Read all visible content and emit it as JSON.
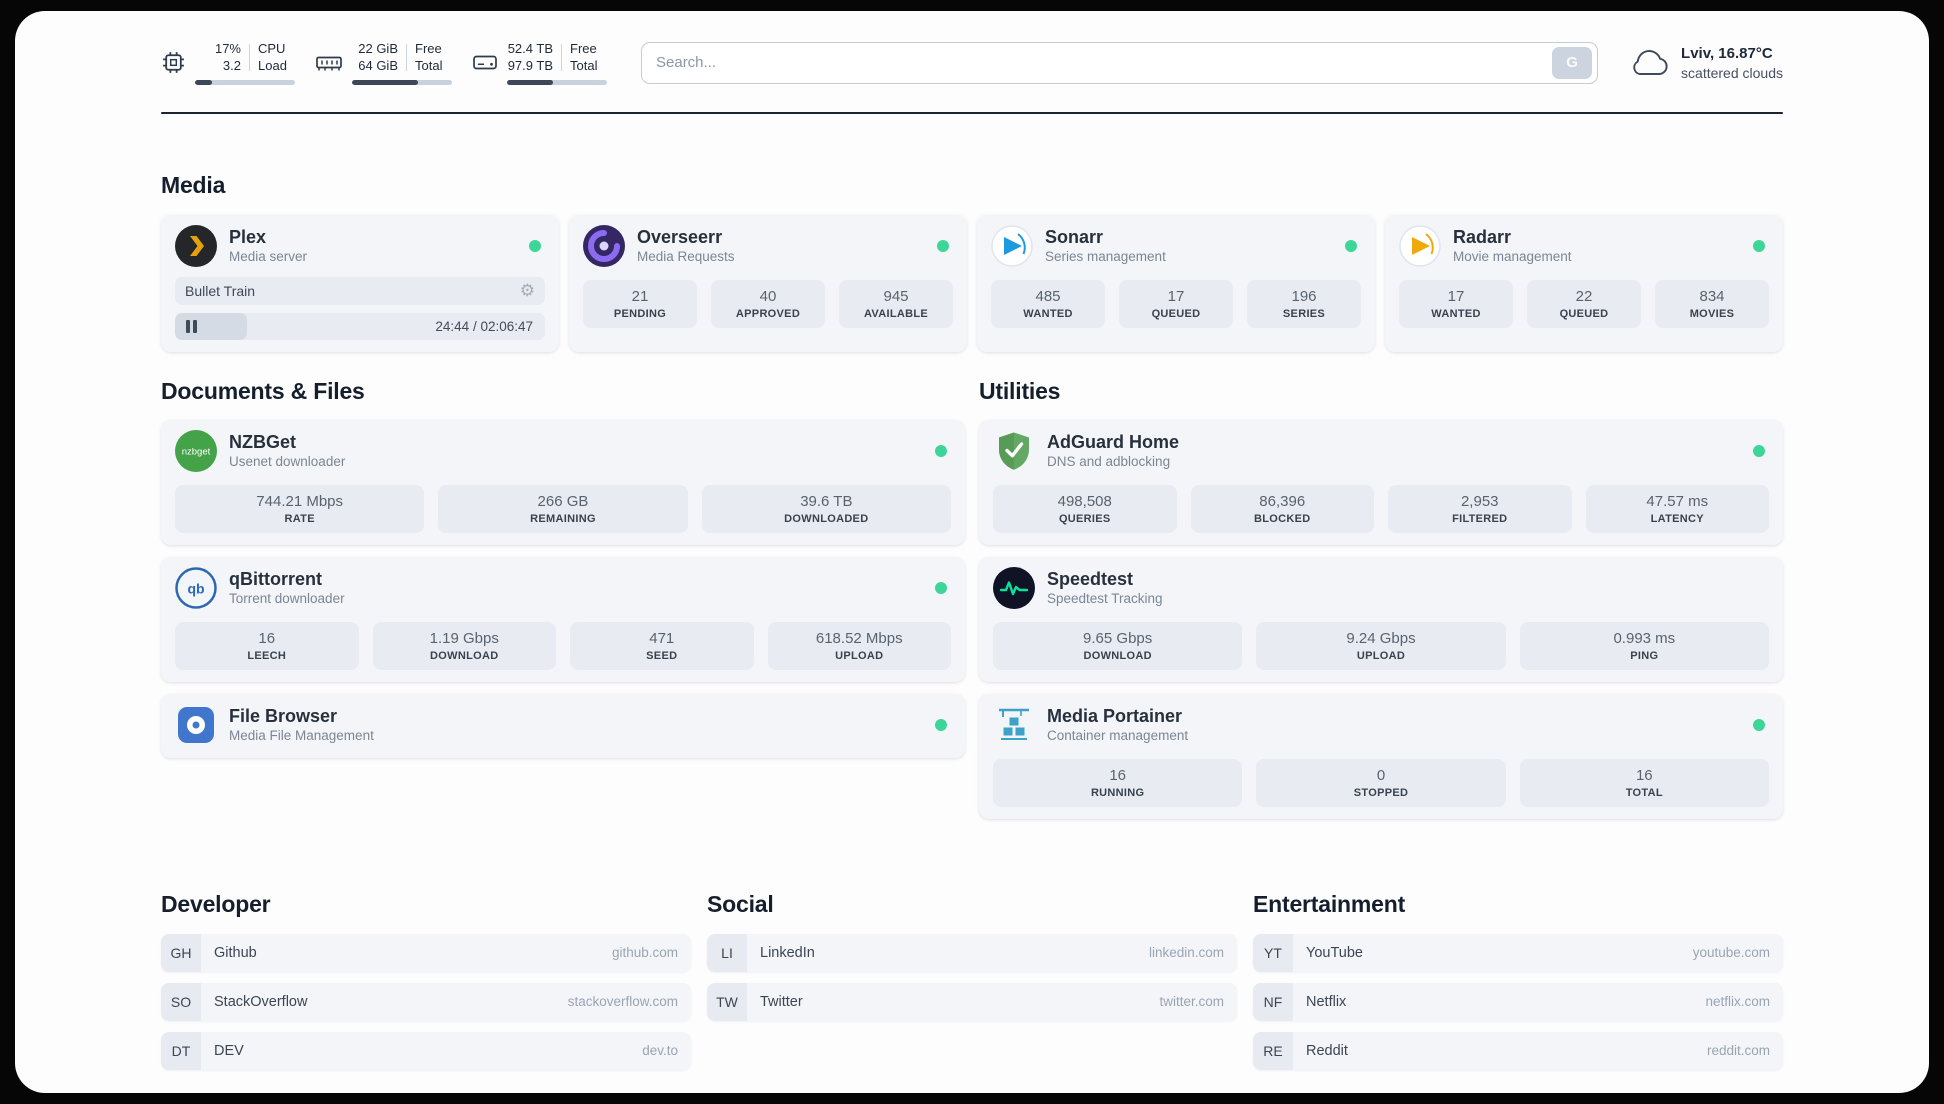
{
  "header": {
    "cpu": {
      "values": [
        "17%",
        "3.2"
      ],
      "labels": [
        "CPU",
        "Load"
      ],
      "used_percent": 17
    },
    "memory": {
      "values": [
        "22 GiB",
        "64 GiB"
      ],
      "labels": [
        "Free",
        "Total"
      ],
      "used_percent": 66
    },
    "disk": {
      "values": [
        "52.4 TB",
        "97.9 TB"
      ],
      "labels": [
        "Free",
        "Total"
      ],
      "used_percent": 46
    },
    "search": {
      "placeholder": "Search...",
      "button_label": "G"
    },
    "weather": {
      "location": "Lviv, 16.87°C",
      "condition": "scattered clouds"
    }
  },
  "icons": {
    "gear": "⚙"
  },
  "sections": {
    "media": {
      "title": "Media",
      "plex": {
        "name": "Plex",
        "description": "Media server",
        "status": "online",
        "now_playing": "Bullet Train",
        "time": "24:44 / 02:06:47",
        "progress_percent": 19.5
      },
      "overseerr": {
        "name": "Overseerr",
        "description": "Media Requests",
        "status": "online",
        "stats": [
          {
            "value": "21",
            "label": "PENDING"
          },
          {
            "value": "40",
            "label": "APPROVED"
          },
          {
            "value": "945",
            "label": "AVAILABLE"
          }
        ]
      },
      "sonarr": {
        "name": "Sonarr",
        "description": "Series management",
        "status": "online",
        "stats": [
          {
            "value": "485",
            "label": "WANTED"
          },
          {
            "value": "17",
            "label": "QUEUED"
          },
          {
            "value": "196",
            "label": "SERIES"
          }
        ]
      },
      "radarr": {
        "name": "Radarr",
        "description": "Movie management",
        "status": "online",
        "stats": [
          {
            "value": "17",
            "label": "WANTED"
          },
          {
            "value": "22",
            "label": "QUEUED"
          },
          {
            "value": "834",
            "label": "MOVIES"
          }
        ]
      }
    },
    "documents": {
      "title": "Documents & Files",
      "nzbget": {
        "name": "NZBGet",
        "description": "Usenet downloader",
        "status": "online",
        "icon_text": "nzbget",
        "stats": [
          {
            "value": "744.21 Mbps",
            "label": "RATE"
          },
          {
            "value": "266 GB",
            "label": "REMAINING"
          },
          {
            "value": "39.6 TB",
            "label": "DOWNLOADED"
          }
        ]
      },
      "qbittorrent": {
        "name": "qBittorrent",
        "description": "Torrent downloader",
        "status": "online",
        "icon_text": "qb",
        "stats": [
          {
            "value": "16",
            "label": "LEECH"
          },
          {
            "value": "1.19 Gbps",
            "label": "DOWNLOAD"
          },
          {
            "value": "471",
            "label": "SEED"
          },
          {
            "value": "618.52 Mbps",
            "label": "UPLOAD"
          }
        ]
      },
      "filebrowser": {
        "name": "File Browser",
        "description": "Media File Management",
        "status": "online"
      }
    },
    "utilities": {
      "title": "Utilities",
      "adguard": {
        "name": "AdGuard Home",
        "description": "DNS and adblocking",
        "status": "online",
        "stats": [
          {
            "value": "498,508",
            "label": "QUERIES"
          },
          {
            "value": "86,396",
            "label": "BLOCKED"
          },
          {
            "value": "2,953",
            "label": "FILTERED"
          },
          {
            "value": "47.57 ms",
            "label": "LATENCY"
          }
        ]
      },
      "speedtest": {
        "name": "Speedtest",
        "description": "Speedtest Tracking",
        "stats": [
          {
            "value": "9.65 Gbps",
            "label": "DOWNLOAD"
          },
          {
            "value": "9.24 Gbps",
            "label": "UPLOAD"
          },
          {
            "value": "0.993 ms",
            "label": "PING"
          }
        ]
      },
      "portainer": {
        "name": "Media Portainer",
        "description": "Container management",
        "status": "online",
        "stats": [
          {
            "value": "16",
            "label": "RUNNING"
          },
          {
            "value": "0",
            "label": "STOPPED"
          },
          {
            "value": "16",
            "label": "TOTAL"
          }
        ]
      }
    }
  },
  "bookmarks": {
    "developer": {
      "title": "Developer",
      "items": [
        {
          "abbr": "GH",
          "name": "Github",
          "url": "github.com"
        },
        {
          "abbr": "SO",
          "name": "StackOverflow",
          "url": "stackoverflow.com"
        },
        {
          "abbr": "DT",
          "name": "DEV",
          "url": "dev.to"
        }
      ]
    },
    "social": {
      "title": "Social",
      "items": [
        {
          "abbr": "LI",
          "name": "LinkedIn",
          "url": "linkedin.com"
        },
        {
          "abbr": "TW",
          "name": "Twitter",
          "url": "twitter.com"
        }
      ]
    },
    "entertainment": {
      "title": "Entertainment",
      "items": [
        {
          "abbr": "YT",
          "name": "YouTube",
          "url": "youtube.com"
        },
        {
          "abbr": "NF",
          "name": "Netflix",
          "url": "netflix.com"
        },
        {
          "abbr": "RE",
          "name": "Reddit",
          "url": "reddit.com"
        }
      ]
    }
  },
  "colors": {
    "status_online": "#3ed598",
    "plex_accent": "#e5a00d",
    "card_bg": "#f3f5f9",
    "stat_bg": "#e8ecf2"
  }
}
